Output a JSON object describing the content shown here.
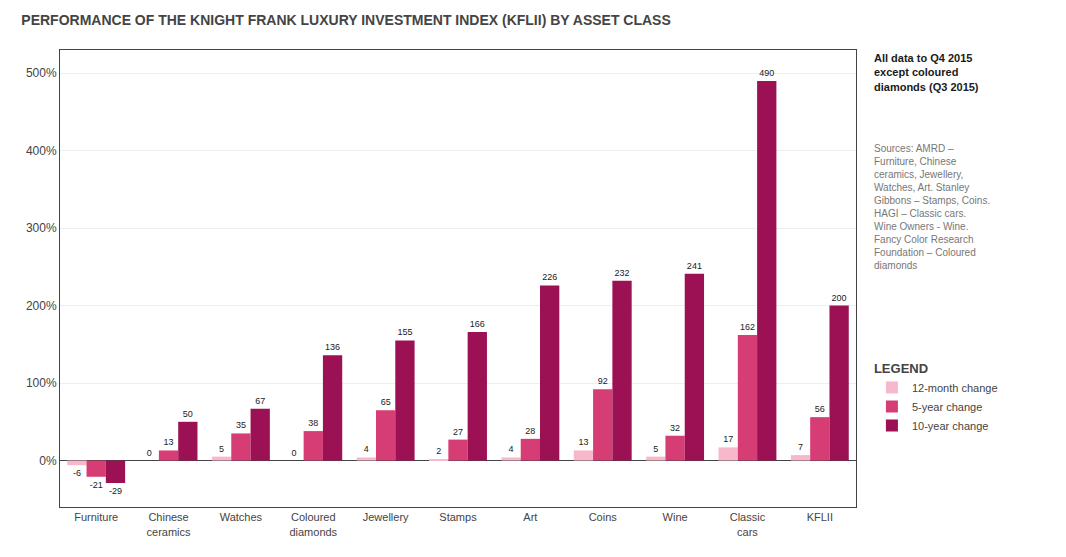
{
  "chart_data": {
    "type": "bar",
    "title": "PERFORMANCE OF THE KNIGHT FRANK LUXURY INVESTMENT INDEX (KFLII) BY ASSET CLASS",
    "categories": [
      "Furniture",
      "Chinese\nceramics",
      "Watches",
      "Coloured\ndiamonds",
      "Jewellery",
      "Stamps",
      "Art",
      "Coins",
      "Wine",
      "Classic\ncars",
      "KFLII"
    ],
    "series": [
      {
        "name": "12-month change",
        "color": "#f7b8cb",
        "values": [
          -6,
          0,
          5,
          0,
          4,
          2,
          4,
          13,
          5,
          17,
          7
        ]
      },
      {
        "name": "5-year change",
        "color": "#d63d75",
        "values": [
          -21,
          13,
          35,
          38,
          65,
          27,
          28,
          92,
          32,
          162,
          56
        ]
      },
      {
        "name": "10-year change",
        "color": "#9b1153",
        "values": [
          -29,
          50,
          67,
          136,
          155,
          166,
          226,
          232,
          241,
          490,
          200
        ]
      }
    ],
    "ylim": [
      -60,
      530
    ],
    "yticks": [
      {
        "value": 0,
        "label": "0%"
      },
      {
        "value": 100,
        "label": "100%"
      },
      {
        "value": 200,
        "label": "200%"
      },
      {
        "value": 300,
        "label": "300%"
      },
      {
        "value": 400,
        "label": "400%"
      },
      {
        "value": 500,
        "label": "500%"
      }
    ],
    "grid": true,
    "legend": "right",
    "legend_title": "LEGEND",
    "data_labels": true,
    "annotations": [
      "All data to Q4 2015\nexcept coloured\ndiamonds (Q3 2015)",
      "Sources: AMRD –\nFurniture, Chinese\nceramics, Jewellery,\nWatches, Art. Stanley\nGibbons – Stamps, Coins.\nHAGI – Classic cars.\nWine Owners - Wine.\nFancy Color Research\nFoundation – Coloured\ndiamonds"
    ]
  }
}
